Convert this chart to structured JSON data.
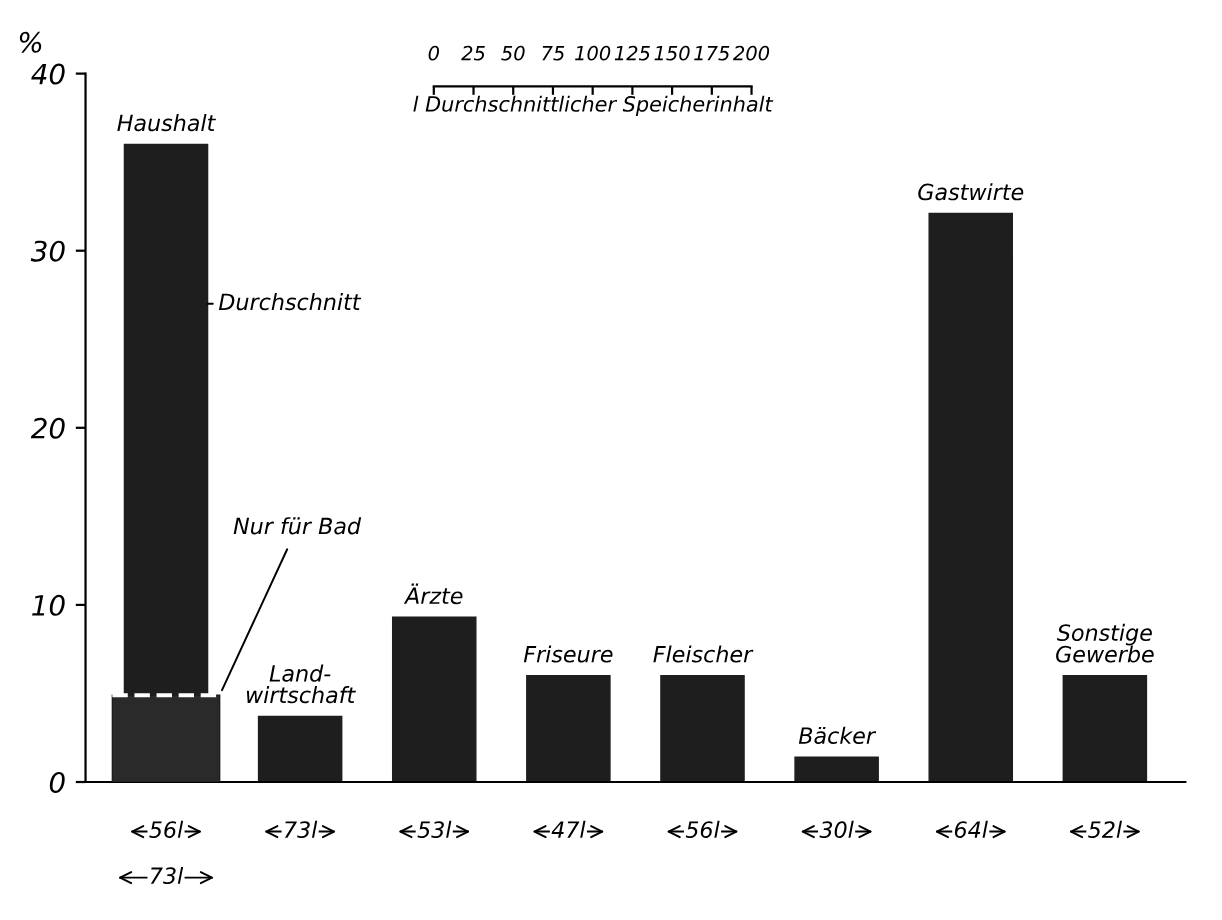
{
  "chart_data": {
    "type": "bar",
    "ylabel": "%",
    "ylim": [
      0,
      40
    ],
    "yticks": [
      0,
      10,
      20,
      30,
      40
    ],
    "grid": false,
    "categories": [
      "Haushalt",
      "Land-\nwirtschaft",
      "Ärzte",
      "Friseure",
      "Fleischer",
      "Bäcker",
      "Gastwirte",
      "Sonstige\nGewerbe"
    ],
    "series": [
      {
        "name": "Durchschnitt",
        "color": "#1e1e1e",
        "values": [
          36,
          3.7,
          9.3,
          6.0,
          6.0,
          1.4,
          32.1,
          6.0
        ]
      },
      {
        "name": "Nur für Bad",
        "color": "#2a2a2a",
        "values": [
          4.9,
          null,
          null,
          null,
          null,
          null,
          null,
          null
        ]
      }
    ],
    "x2lim": [
      0,
      200
    ],
    "x2ticks": [
      0,
      25,
      50,
      75,
      100,
      125,
      150,
      175,
      200
    ],
    "x2label": "l Durchschnittlicher Speicherinhalt",
    "annotations": [
      "56l",
      "73l",
      "53l",
      "47l",
      "56l",
      "30l",
      "64l",
      "52l",
      "73l"
    ]
  }
}
